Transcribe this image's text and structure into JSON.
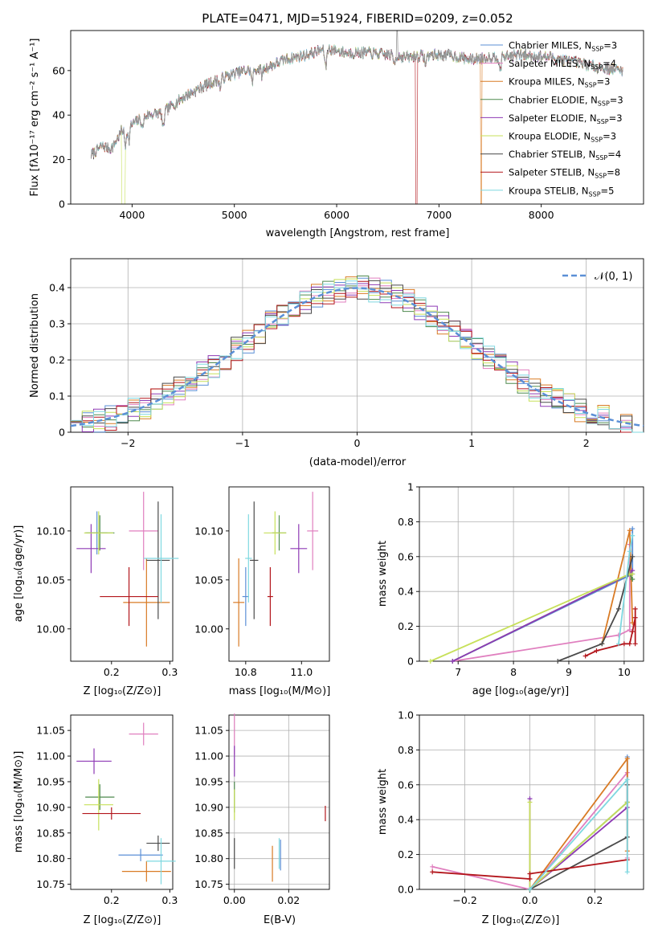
{
  "chart_data": [
    {
      "type": "line",
      "title": "PLATE=0471, MJD=51924, FIBERID=0209, z=0.052",
      "xlabel": "wavelength [Angstrom, rest frame]",
      "ylabel": "Flux [fλ10⁻¹⁷ erg cm⁻² s⁻¹ A⁻¹]",
      "xlim": [
        3400,
        9000
      ],
      "ylim": [
        0,
        78
      ],
      "xticks": [
        4000,
        5000,
        6000,
        7000,
        8000
      ],
      "yticks": [
        0,
        20,
        40,
        60
      ],
      "legend_position": "upper-right",
      "spectrum_anchors": [
        [
          3600,
          22
        ],
        [
          3700,
          26
        ],
        [
          3800,
          25
        ],
        [
          3900,
          33
        ],
        [
          4000,
          36
        ],
        [
          4150,
          40
        ],
        [
          4300,
          41
        ],
        [
          4500,
          48
        ],
        [
          4700,
          53
        ],
        [
          4900,
          57
        ],
        [
          5100,
          60
        ],
        [
          5300,
          61
        ],
        [
          5500,
          65
        ],
        [
          5700,
          67
        ],
        [
          5900,
          70
        ],
        [
          6100,
          68
        ],
        [
          6300,
          68
        ],
        [
          6500,
          67
        ],
        [
          6700,
          66
        ],
        [
          6900,
          67
        ],
        [
          7100,
          67
        ],
        [
          7300,
          65
        ],
        [
          7500,
          66
        ],
        [
          7800,
          67
        ],
        [
          8100,
          66
        ],
        [
          8300,
          64
        ],
        [
          8500,
          62
        ],
        [
          8800,
          60
        ]
      ],
      "series": [
        {
          "name": "Chabrier MILES, Nₛₛₚ=3",
          "label_main": "Chabrier MILES, N",
          "label_sub": "SSP",
          "label_tail": "=3",
          "color": "#5b8fd6"
        },
        {
          "name": "Salpeter MILES, Nₛₛₚ=4",
          "label_main": "Salpeter MILES, N",
          "label_sub": "SSP",
          "label_tail": "=4",
          "color": "#e07fbf"
        },
        {
          "name": "Kroupa MILES, Nₛₛₚ=3",
          "label_main": "Kroupa MILES, N",
          "label_sub": "SSP",
          "label_tail": "=3",
          "color": "#d97b25"
        },
        {
          "name": "Chabrier ELODIE, Nₛₛₚ=3",
          "label_main": "Chabrier ELODIE, N",
          "label_sub": "SSP",
          "label_tail": "=3",
          "color": "#4f8a4f"
        },
        {
          "name": "Salpeter ELODIE, Nₛₛₚ=3",
          "label_main": "Salpeter ELODIE, N",
          "label_sub": "SSP",
          "label_tail": "=3",
          "color": "#8e3ab5"
        },
        {
          "name": "Kroupa ELODIE, Nₛₛₚ=3",
          "label_main": "Kroupa ELODIE, N",
          "label_sub": "SSP",
          "label_tail": "=3",
          "color": "#c7e05a"
        },
        {
          "name": "Chabrier STELIB, Nₛₛₚ=4",
          "label_main": "Chabrier STELIB, N",
          "label_sub": "SSP",
          "label_tail": "=4",
          "color": "#4a4a4a"
        },
        {
          "name": "Salpeter STELIB, Nₛₛₚ=8",
          "label_main": "Salpeter STELIB, N",
          "label_sub": "SSP",
          "label_tail": "=8",
          "color": "#b3161c"
        },
        {
          "name": "Kroupa STELIB, Nₛₛₚ=5",
          "label_main": "Kroupa STELIB, N",
          "label_sub": "SSP",
          "label_tail": "=5",
          "color": "#7fd8e0"
        }
      ]
    },
    {
      "type": "line",
      "xlabel": "(data-model)/error",
      "ylabel": "Normed distribution",
      "xlim": [
        -2.5,
        2.5
      ],
      "ylim": [
        0,
        0.48
      ],
      "xticks": [
        -2,
        -1,
        0,
        1,
        2
      ],
      "yticks": [
        0.0,
        0.1,
        0.2,
        0.3,
        0.4
      ],
      "grid": true,
      "legend_position": "upper-right",
      "reference_curve": {
        "name": "𝒩(0, 1)",
        "mean": 0,
        "sigma": 1,
        "color": "#5b8fd6",
        "style": "dashed"
      },
      "histogram_bin_width": 0.1
    },
    {
      "type": "scatter",
      "xlabel": "Z [log₁₀(Z/Z⊙)]",
      "ylabel": "age [log₁₀(age/yr)]",
      "xlim": [
        0.13,
        0.305
      ],
      "ylim": [
        9.967,
        10.145
      ],
      "xticks": [
        0.2,
        0.3
      ],
      "yticks": [
        10.0,
        10.05,
        10.1
      ],
      "points": [
        {
          "x": 0.175,
          "y": 10.098,
          "xerr": 0.018,
          "yerr": 0.022,
          "color": "#5b8fd6"
        },
        {
          "x": 0.255,
          "y": 10.1,
          "xerr": 0.025,
          "yerr": 0.04,
          "color": "#e07fbf"
        },
        {
          "x": 0.26,
          "y": 10.027,
          "xerr": 0.04,
          "yerr": 0.045,
          "color": "#d97b25"
        },
        {
          "x": 0.18,
          "y": 10.098,
          "xerr": 0.025,
          "yerr": 0.018,
          "color": "#4f8a4f"
        },
        {
          "x": 0.165,
          "y": 10.082,
          "xerr": 0.025,
          "yerr": 0.025,
          "color": "#8e3ab5"
        },
        {
          "x": 0.178,
          "y": 10.098,
          "xerr": 0.025,
          "yerr": 0.022,
          "color": "#c7e05a"
        },
        {
          "x": 0.28,
          "y": 10.07,
          "xerr": 0.02,
          "yerr": 0.06,
          "color": "#4a4a4a"
        },
        {
          "x": 0.23,
          "y": 10.033,
          "xerr": 0.05,
          "yerr": 0.03,
          "color": "#b3161c"
        },
        {
          "x": 0.285,
          "y": 10.072,
          "xerr": 0.03,
          "yerr": 0.045,
          "color": "#7fd8e0"
        }
      ]
    },
    {
      "type": "scatter",
      "xlabel": "mass [log₁₀(M/M⊙)]",
      "xlim": [
        10.74,
        11.1
      ],
      "ylim": [
        9.967,
        10.145
      ],
      "xticks": [
        10.8,
        11.0
      ],
      "yticks": [
        10.0,
        10.05,
        10.1
      ],
      "points": [
        {
          "x": 10.8,
          "y": 10.033,
          "xerr": 0.012,
          "yerr": 0.03,
          "color": "#5b8fd6"
        },
        {
          "x": 11.04,
          "y": 10.1,
          "xerr": 0.02,
          "yerr": 0.04,
          "color": "#e07fbf"
        },
        {
          "x": 10.775,
          "y": 10.027,
          "xerr": 0.02,
          "yerr": 0.045,
          "color": "#d97b25"
        },
        {
          "x": 10.92,
          "y": 10.098,
          "xerr": 0.025,
          "yerr": 0.018,
          "color": "#4f8a4f"
        },
        {
          "x": 10.99,
          "y": 10.082,
          "xerr": 0.03,
          "yerr": 0.025,
          "color": "#8e3ab5"
        },
        {
          "x": 10.905,
          "y": 10.098,
          "xerr": 0.04,
          "yerr": 0.022,
          "color": "#c7e05a"
        },
        {
          "x": 10.83,
          "y": 10.07,
          "xerr": 0.015,
          "yerr": 0.06,
          "color": "#4a4a4a"
        },
        {
          "x": 10.888,
          "y": 10.033,
          "xerr": 0.01,
          "yerr": 0.03,
          "color": "#b3161c"
        },
        {
          "x": 10.81,
          "y": 10.072,
          "xerr": 0.012,
          "yerr": 0.045,
          "color": "#7fd8e0"
        }
      ]
    },
    {
      "type": "line",
      "xlabel": "age [log₁₀(age/yr)]",
      "ylabel": "mass weight",
      "xlim": [
        6.3,
        10.35
      ],
      "ylim": [
        0,
        1.0
      ],
      "xticks": [
        7,
        8,
        9,
        10
      ],
      "yticks": [
        0.0,
        0.2,
        0.4,
        0.6,
        0.8,
        1.0
      ],
      "grid": true,
      "series": [
        {
          "color": "#5b8fd6",
          "x": [
            6.9,
            10.15,
            10.15
          ],
          "y": [
            0.0,
            0.5,
            0.76
          ]
        },
        {
          "color": "#e07fbf",
          "x": [
            6.9,
            9.9,
            10.1,
            10.1
          ],
          "y": [
            0.0,
            0.15,
            0.18,
            0.67
          ]
        },
        {
          "color": "#d97b25",
          "x": [
            9.6,
            10.1,
            10.15
          ],
          "y": [
            0.1,
            0.75,
            0.22
          ]
        },
        {
          "color": "#4f8a4f",
          "x": [
            6.9,
            10.1,
            10.15
          ],
          "y": [
            0.0,
            0.5,
            0.47
          ]
        },
        {
          "color": "#8e3ab5",
          "x": [
            6.9,
            10.1,
            10.15
          ],
          "y": [
            0.0,
            0.5,
            0.52
          ]
        },
        {
          "color": "#c7e05a",
          "x": [
            6.5,
            10.1,
            10.15
          ],
          "y": [
            0.0,
            0.5,
            0.5
          ]
        },
        {
          "color": "#4a4a4a",
          "x": [
            8.8,
            9.6,
            9.9,
            10.15
          ],
          "y": [
            0.0,
            0.1,
            0.3,
            0.6
          ]
        },
        {
          "color": "#b3161c",
          "x": [
            9.3,
            9.5,
            10.0,
            10.1,
            10.15,
            10.2,
            10.2,
            10.2
          ],
          "y": [
            0.03,
            0.06,
            0.1,
            0.1,
            0.17,
            0.25,
            0.3,
            0.1
          ]
        },
        {
          "color": "#7fd8e0",
          "x": [
            9.9,
            10.1,
            10.15
          ],
          "y": [
            0.1,
            0.63,
            0.72
          ]
        }
      ]
    },
    {
      "type": "scatter",
      "xlabel": "Z [log₁₀(Z/Z⊙)]",
      "ylabel": "mass [log₁₀(M/M⊙)]",
      "xlim": [
        0.13,
        0.305
      ],
      "ylim": [
        10.74,
        11.08
      ],
      "xticks": [
        0.2,
        0.3
      ],
      "yticks": [
        10.75,
        10.8,
        10.85,
        10.9,
        10.95,
        11.0,
        11.05
      ],
      "points": [
        {
          "x": 0.25,
          "y": 10.807,
          "xerr": 0.038,
          "yerr": 0.012,
          "color": "#5b8fd6"
        },
        {
          "x": 0.255,
          "y": 11.043,
          "xerr": 0.025,
          "yerr": 0.022,
          "color": "#e07fbf"
        },
        {
          "x": 0.26,
          "y": 10.775,
          "xerr": 0.042,
          "yerr": 0.02,
          "color": "#d97b25"
        },
        {
          "x": 0.18,
          "y": 10.92,
          "xerr": 0.025,
          "yerr": 0.025,
          "color": "#4f8a4f"
        },
        {
          "x": 0.17,
          "y": 10.99,
          "xerr": 0.03,
          "yerr": 0.025,
          "color": "#8e3ab5"
        },
        {
          "x": 0.178,
          "y": 10.905,
          "xerr": 0.025,
          "yerr": 0.05,
          "color": "#c7e05a"
        },
        {
          "x": 0.28,
          "y": 10.83,
          "xerr": 0.02,
          "yerr": 0.015,
          "color": "#4a4a4a"
        },
        {
          "x": 0.2,
          "y": 10.888,
          "xerr": 0.05,
          "yerr": 0.012,
          "color": "#b3161c"
        },
        {
          "x": 0.285,
          "y": 10.795,
          "xerr": 0.025,
          "yerr": 0.045,
          "color": "#7fd8e0"
        }
      ]
    },
    {
      "type": "scatter",
      "xlabel": "E(B-V)",
      "xlim": [
        -0.002,
        0.035
      ],
      "ylim": [
        10.74,
        11.08
      ],
      "xticks": [
        0.0,
        0.02
      ],
      "yticks": [
        10.75,
        10.8,
        10.85,
        10.9,
        10.95,
        11.0,
        11.05
      ],
      "grid": true,
      "points": [
        {
          "x": 0.017,
          "y": 10.807,
          "yerr": 0.03,
          "color": "#5b8fd6"
        },
        {
          "x": 0.0,
          "y": 11.043,
          "yerr": 0.04,
          "color": "#e07fbf"
        },
        {
          "x": 0.014,
          "y": 10.79,
          "yerr": 0.035,
          "color": "#d97b25"
        },
        {
          "x": 0.0,
          "y": 10.92,
          "yerr": 0.03,
          "color": "#4f8a4f"
        },
        {
          "x": 0.0,
          "y": 10.99,
          "yerr": 0.03,
          "color": "#8e3ab5"
        },
        {
          "x": 0.0,
          "y": 10.905,
          "yerr": 0.03,
          "color": "#c7e05a"
        },
        {
          "x": 0.0,
          "y": 10.81,
          "yerr": 0.03,
          "color": "#4a4a4a"
        },
        {
          "x": 0.0335,
          "y": 10.888,
          "yerr": 0.015,
          "color": "#b3161c"
        },
        {
          "x": 0.0165,
          "y": 10.81,
          "yerr": 0.03,
          "color": "#7fd8e0"
        }
      ]
    },
    {
      "type": "line",
      "xlabel": "Z [log₁₀(Z/Z⊙)]",
      "ylabel": "mass weight",
      "xlim": [
        -0.34,
        0.35
      ],
      "ylim": [
        0,
        1.0
      ],
      "xticks": [
        -0.2,
        0.0,
        0.2
      ],
      "yticks": [
        0.0,
        0.2,
        0.4,
        0.6,
        0.8,
        1.0
      ],
      "grid": true,
      "series": [
        {
          "color": "#5b8fd6",
          "x": [
            0.0,
            0.3,
            0.3
          ],
          "y": [
            0.0,
            0.5,
            0.76
          ]
        },
        {
          "color": "#e07fbf",
          "x": [
            -0.3,
            0.0,
            0.3,
            0.3
          ],
          "y": [
            0.13,
            0.0,
            0.67,
            0.18
          ]
        },
        {
          "color": "#d97b25",
          "x": [
            0.0,
            0.3,
            0.3
          ],
          "y": [
            0.0,
            0.75,
            0.22
          ]
        },
        {
          "color": "#4f8a4f",
          "x": [
            0.0,
            0.3
          ],
          "y": [
            0.0,
            0.5
          ]
        },
        {
          "color": "#8e3ab5",
          "x": [
            0.0,
            0.0,
            0.3
          ],
          "y": [
            0.52,
            0.0,
            0.47
          ]
        },
        {
          "color": "#c7e05a",
          "x": [
            0.0,
            0.0,
            0.3
          ],
          "y": [
            0.5,
            0.0,
            0.5
          ]
        },
        {
          "color": "#4a4a4a",
          "x": [
            0.0,
            0.3,
            0.3
          ],
          "y": [
            0.0,
            0.3,
            0.6
          ]
        },
        {
          "color": "#b3161c",
          "x": [
            -0.3,
            0.0,
            0.0,
            0.3
          ],
          "y": [
            0.1,
            0.06,
            0.09,
            0.17
          ]
        },
        {
          "color": "#7fd8e0",
          "x": [
            0.0,
            0.3,
            0.3
          ],
          "y": [
            0.0,
            0.63,
            0.1
          ]
        }
      ]
    }
  ]
}
